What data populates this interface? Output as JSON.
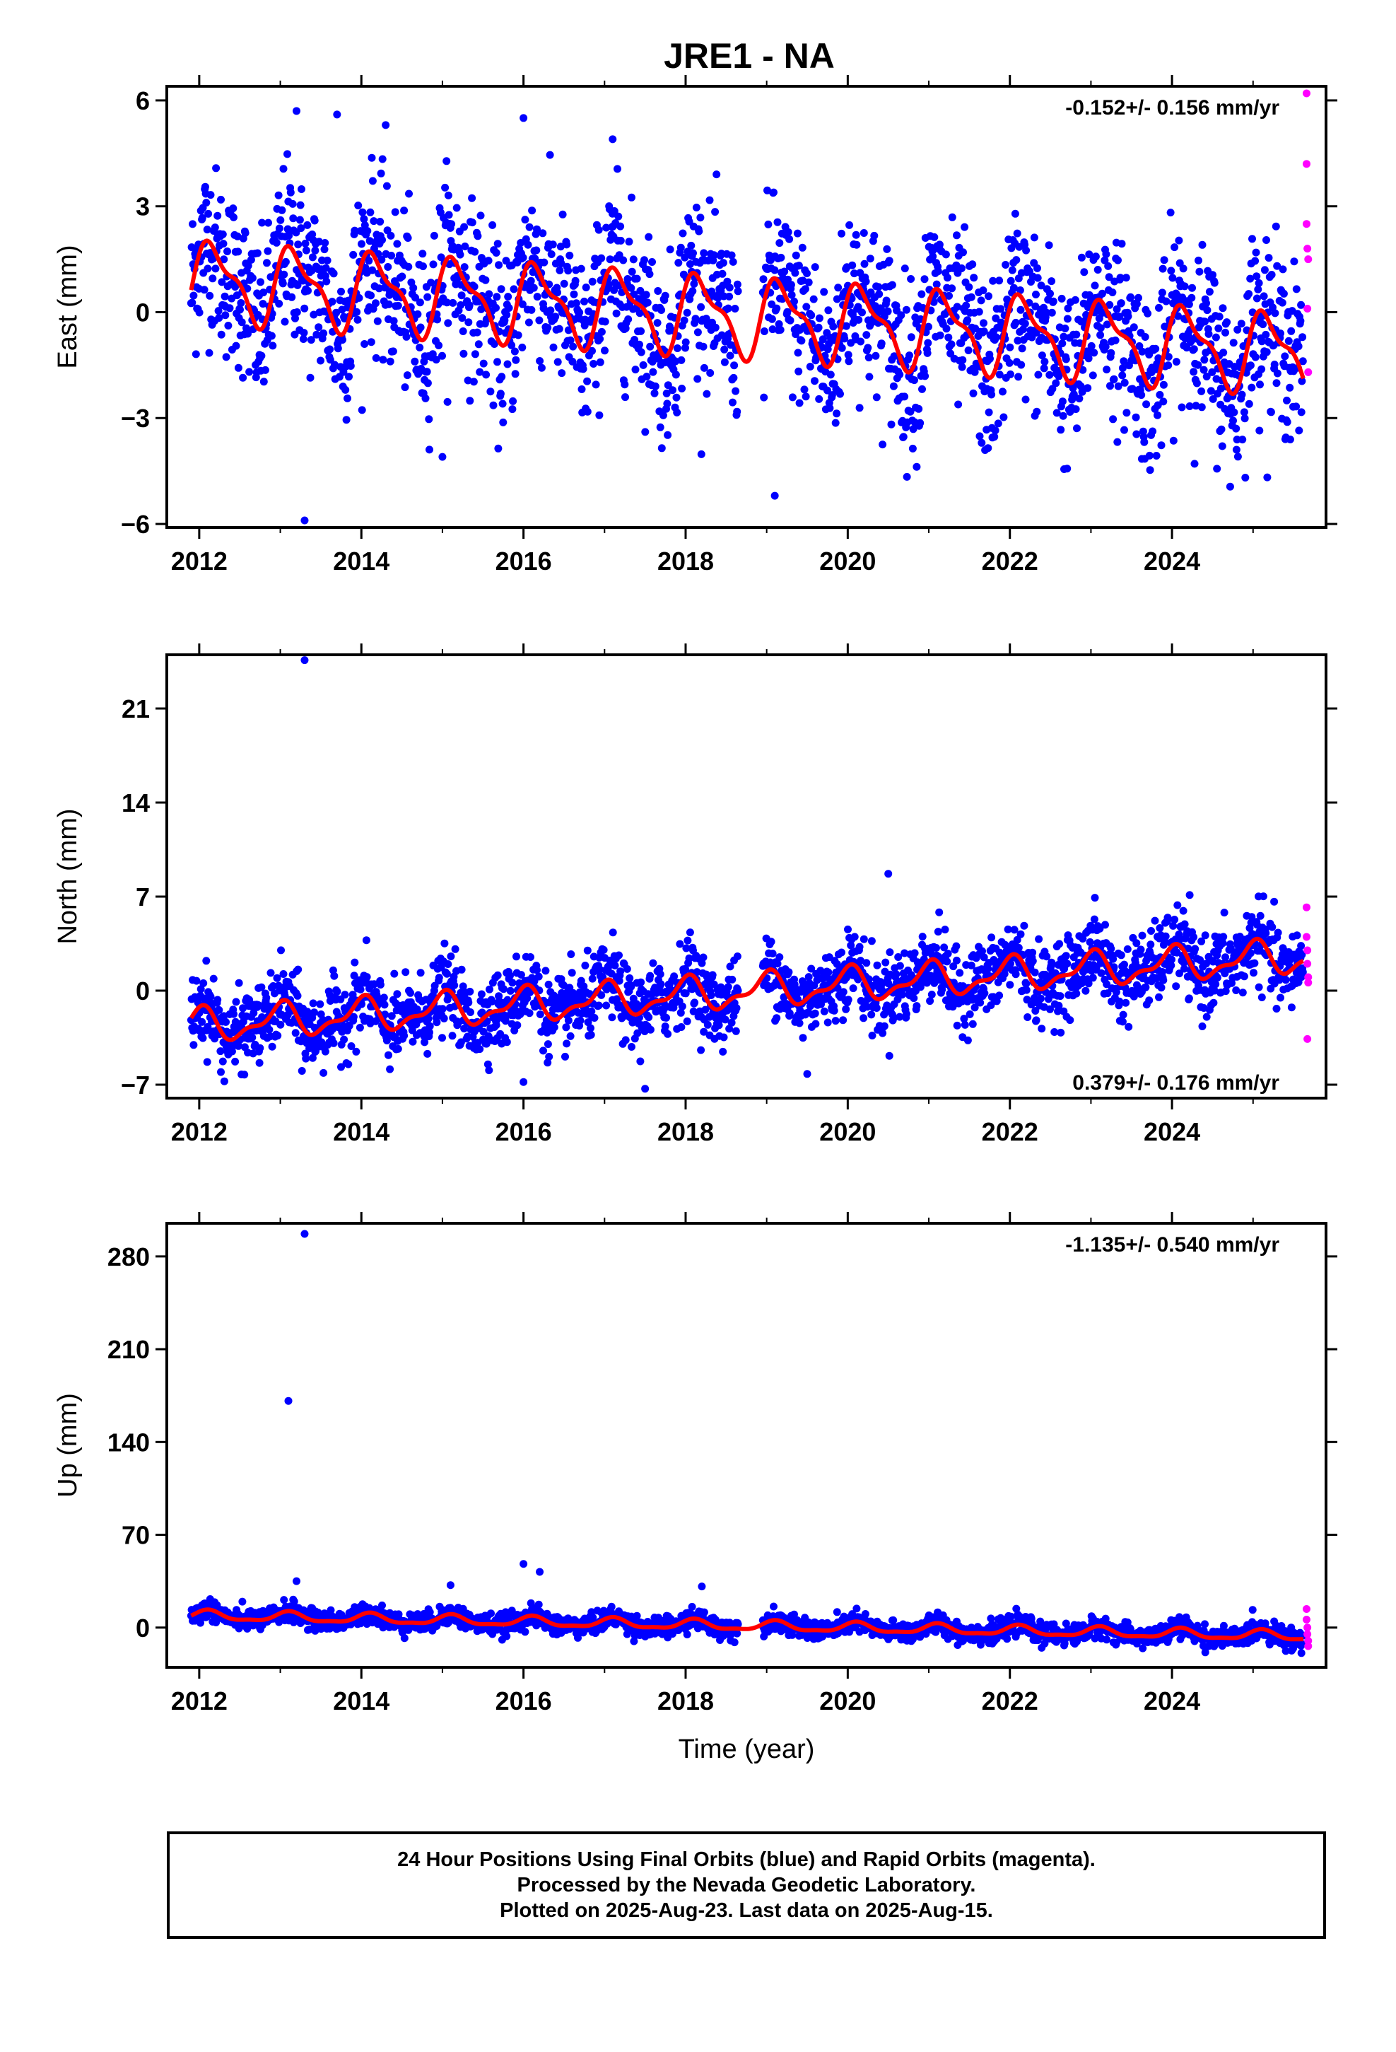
{
  "title": "JRE1 - NA",
  "caption": {
    "line1": "24 Hour Positions Using Final Orbits (blue) and Rapid Orbits (magenta).",
    "line2": "Processed by the Nevada Geodetic Laboratory.",
    "line3": "Plotted on 2025-Aug-23. Last data on 2025-Aug-15."
  },
  "colors": {
    "final": "#0000ff",
    "rapid": "#ff00ff",
    "model": "#ff0000",
    "frame": "#000000"
  },
  "chart_data": [
    {
      "type": "scatter",
      "ylabel": "East (mm)",
      "xlabel": "",
      "rate_text": "-0.152+/- 0.156 mm/yr",
      "rate_position": "top-right",
      "xlim": [
        2011.6,
        2025.9
      ],
      "ylim": [
        -6.1,
        6.4
      ],
      "x_ticks": [
        2012,
        2014,
        2016,
        2018,
        2020,
        2022,
        2024
      ],
      "y_ticks": [
        -6,
        -3,
        0,
        3,
        6
      ],
      "y_tick_labels": [
        "−6",
        "−3",
        "0",
        "3",
        "6"
      ],
      "model": {
        "offset": 0.9,
        "trend": -0.152,
        "ref_year": 2012,
        "amp1": 1.0,
        "phase1": 0.4,
        "amp2": 0.4,
        "phase2": 1.1
      },
      "scatter_sigma": 1.2,
      "outliers": [
        [
          2013.2,
          5.7
        ],
        [
          2013.7,
          5.6
        ],
        [
          2014.3,
          5.3
        ],
        [
          2016.0,
          5.5
        ],
        [
          2017.1,
          4.9
        ],
        [
          2013.3,
          -5.9
        ],
        [
          2019.1,
          -5.2
        ],
        [
          2015.0,
          -4.1
        ]
      ],
      "rapid_points": [
        [
          2025.66,
          6.2
        ],
        [
          2025.66,
          4.2
        ],
        [
          2025.66,
          2.5
        ],
        [
          2025.67,
          1.8
        ],
        [
          2025.68,
          1.5
        ],
        [
          2025.67,
          0.1
        ],
        [
          2025.68,
          -1.7
        ]
      ]
    },
    {
      "type": "scatter",
      "ylabel": "North (mm)",
      "xlabel": "",
      "rate_text": "0.379+/- 0.176 mm/yr",
      "rate_position": "bottom-right",
      "xlim": [
        2011.6,
        2025.9
      ],
      "ylim": [
        -8.0,
        25.0
      ],
      "x_ticks": [
        2012,
        2014,
        2016,
        2018,
        2020,
        2022,
        2024
      ],
      "y_ticks": [
        -7,
        0,
        7,
        14,
        21
      ],
      "y_tick_labels": [
        "−7",
        "0",
        "7",
        "14",
        "21"
      ],
      "model": {
        "offset": -2.6,
        "trend": 0.379,
        "ref_year": 2012,
        "amp1": 1.1,
        "phase1": 1.6,
        "amp2": 0.5,
        "phase2": 0.6
      },
      "scatter_sigma": 1.4,
      "outliers": [
        [
          2013.3,
          24.6
        ],
        [
          2020.5,
          8.7
        ],
        [
          2017.5,
          -7.3
        ],
        [
          2016.0,
          -6.8
        ],
        [
          2019.5,
          -6.2
        ]
      ],
      "rapid_points": [
        [
          2025.66,
          6.2
        ],
        [
          2025.66,
          4.0
        ],
        [
          2025.67,
          3.0
        ],
        [
          2025.67,
          2.0
        ],
        [
          2025.68,
          1.0
        ],
        [
          2025.68,
          0.6
        ],
        [
          2025.67,
          -3.6
        ]
      ]
    },
    {
      "type": "scatter",
      "ylabel": "Up (mm)",
      "xlabel": "Time (year)",
      "rate_text": "-1.135+/- 0.540 mm/yr",
      "rate_position": "top-right",
      "xlim": [
        2011.6,
        2025.9
      ],
      "ylim": [
        -30,
        305
      ],
      "x_ticks": [
        2012,
        2014,
        2016,
        2018,
        2020,
        2022,
        2024
      ],
      "y_ticks": [
        0,
        70,
        140,
        210,
        280
      ],
      "y_tick_labels": [
        "0",
        "70",
        "140",
        "210",
        "280"
      ],
      "model": {
        "offset": 9,
        "trend": -1.135,
        "ref_year": 2012,
        "amp1": 3.5,
        "phase1": 0.9,
        "amp2": 1.2,
        "phase2": 0.2
      },
      "scatter_sigma": 3.8,
      "outliers": [
        [
          2013.3,
          297
        ],
        [
          2013.1,
          171
        ],
        [
          2013.2,
          35
        ],
        [
          2016.0,
          48
        ],
        [
          2016.2,
          42
        ],
        [
          2015.1,
          32
        ],
        [
          2018.2,
          31
        ]
      ],
      "rapid_points": [
        [
          2025.66,
          14
        ],
        [
          2025.66,
          6
        ],
        [
          2025.67,
          0
        ],
        [
          2025.67,
          -5
        ],
        [
          2025.68,
          -10
        ],
        [
          2025.68,
          -14
        ]
      ]
    }
  ]
}
